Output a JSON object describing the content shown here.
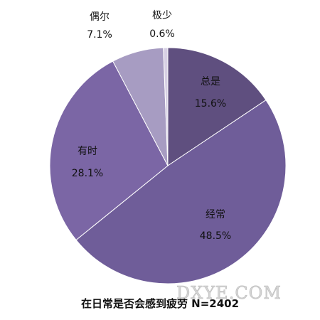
{
  "chart_data": {
    "type": "pie",
    "title": "",
    "caption": "在日常是否会感到疲劳 N=2402",
    "slices": [
      {
        "label": "总是",
        "value": 15.6,
        "value_label": "15.6%",
        "color": "#5f4f7f"
      },
      {
        "label": "经常",
        "value": 48.5,
        "value_label": "48.5%",
        "color": "#6f5d99"
      },
      {
        "label": "有时",
        "value": 28.1,
        "value_label": "28.1%",
        "color": "#7b66a5"
      },
      {
        "label": "偶尔",
        "value": 7.1,
        "value_label": "7.1%",
        "color": "#a79cc2"
      },
      {
        "label": "极少",
        "value": 0.6,
        "value_label": "0.6%",
        "color": "#d7d0e4"
      }
    ],
    "legend": "none",
    "start_angle": "top",
    "direction": "clockwise"
  },
  "watermark_text": "DXYE.COM"
}
